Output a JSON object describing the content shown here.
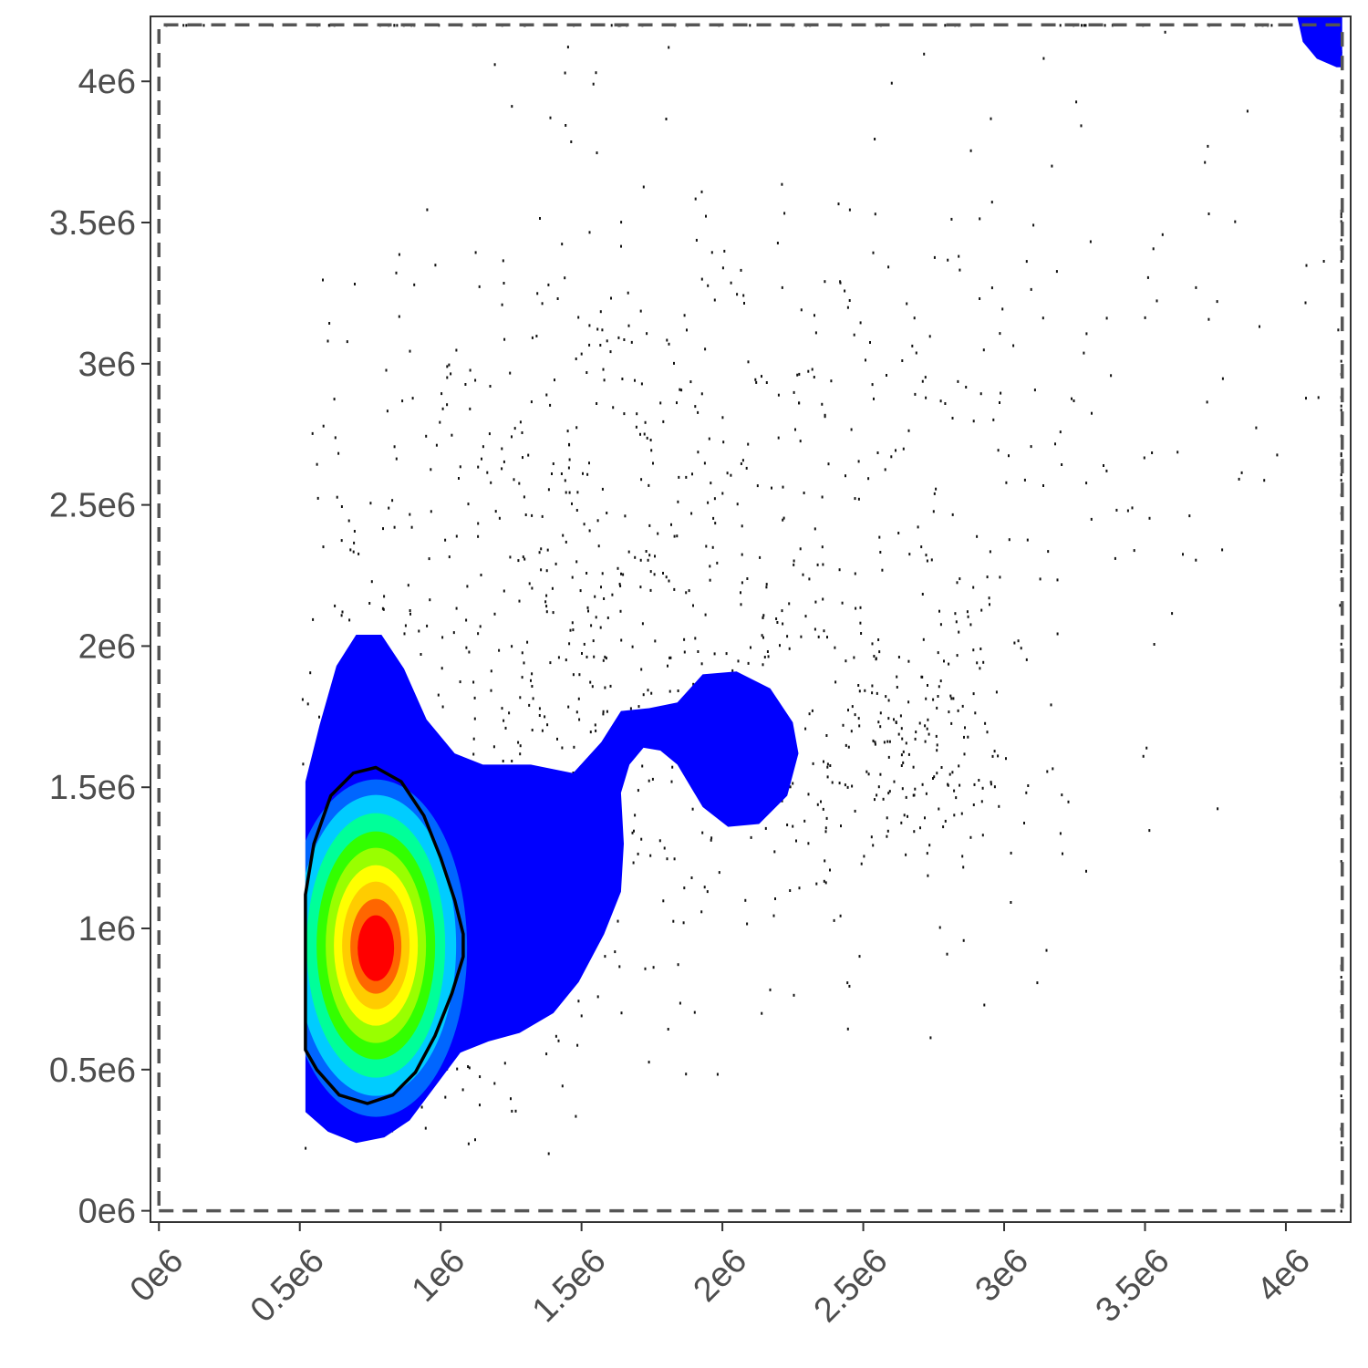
{
  "chart_data": {
    "type": "scatter",
    "title": "",
    "xlabel": "",
    "ylabel": "",
    "xlim": [
      -30000.0,
      4230000.0
    ],
    "ylim": [
      -40000.0,
      4230000.0
    ],
    "x_ticks": [
      {
        "value": 0,
        "label": "0e6"
      },
      {
        "value": 500000,
        "label": "0.5e6"
      },
      {
        "value": 1000000,
        "label": "1e6"
      },
      {
        "value": 1500000,
        "label": "1.5e6"
      },
      {
        "value": 2000000,
        "label": "2e6"
      },
      {
        "value": 2500000,
        "label": "2.5e6"
      },
      {
        "value": 3000000,
        "label": "3e6"
      },
      {
        "value": 3500000,
        "label": "3.5e6"
      },
      {
        "value": 4000000,
        "label": "4e6"
      }
    ],
    "y_ticks": [
      {
        "value": 0,
        "label": "0e6"
      },
      {
        "value": 500000,
        "label": "0.5e6"
      },
      {
        "value": 1000000,
        "label": "1e6"
      },
      {
        "value": 1500000,
        "label": "1.5e6"
      },
      {
        "value": 2000000,
        "label": "2e6"
      },
      {
        "value": 2500000,
        "label": "2.5e6"
      },
      {
        "value": 3000000,
        "label": "3e6"
      },
      {
        "value": 3500000,
        "label": "3.5e6"
      },
      {
        "value": 4000000,
        "label": "4e6"
      }
    ],
    "gate": {
      "style": "dashed",
      "x_range": [
        0,
        4200000.0
      ],
      "y_range": [
        0,
        4200000.0
      ]
    },
    "density": {
      "colormap": [
        "#0000ff",
        "#0066ff",
        "#00ccff",
        "#00ff99",
        "#33ff00",
        "#99ff00",
        "#ffff00",
        "#ffcc00",
        "#ff6600",
        "#ff0000"
      ],
      "peak": {
        "x": 770000.0,
        "y": 930000.0
      },
      "outline_color": "#000000",
      "outline_polygon_x": [
        520000.0,
        550000.0,
        610000.0,
        690000.0,
        770000.0,
        860000.0,
        940000.0,
        1000000.0,
        1050000.0,
        1080000.0,
        1080000.0,
        1040000.0,
        980000.0,
        910000.0,
        830000.0,
        740000.0,
        640000.0,
        560000.0,
        520000.0,
        520000.0
      ],
      "outline_polygon_y": [
        1120000.0,
        1300000.0,
        1470000.0,
        1550000.0,
        1570000.0,
        1520000.0,
        1400000.0,
        1250000.0,
        1100000.0,
        980000.0,
        900000.0,
        770000.0,
        620000.0,
        490000.0,
        410000.0,
        380000.0,
        410000.0,
        500000.0,
        570000.0,
        1120000.0
      ]
    },
    "scatter_seed": 20240611,
    "grid": false,
    "legend": "none"
  }
}
